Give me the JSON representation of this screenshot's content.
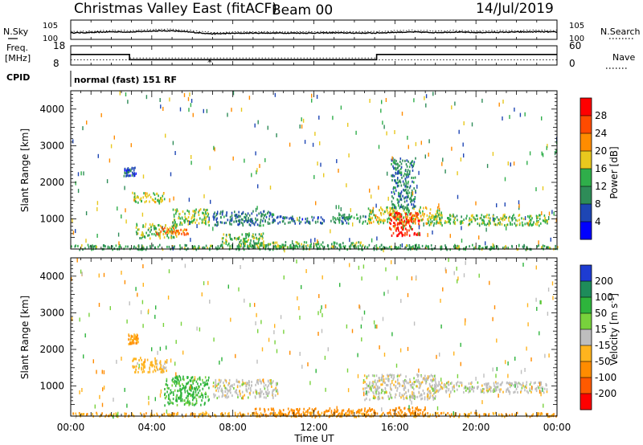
{
  "header": {
    "title": "Christmas Valley East (fitACF)",
    "beam": "Beam 00",
    "date": "14/Jul/2019",
    "mode": "normal (fast) 151 RF"
  },
  "side_labels": {
    "nsky": "N.Sky",
    "nsearch": "N.Search",
    "freq": "Freq.",
    "freq_unit": "[MHz]",
    "nave": "Nave",
    "cpid": "CPID"
  },
  "colors": {
    "scatter_background": "#ffffff",
    "ground_scatter": "#bebebe",
    "trace": "#000000"
  },
  "chart_data": [
    {
      "type": "line",
      "panel": "noise",
      "x": [
        0,
        1,
        2,
        3,
        4,
        5,
        6,
        7,
        8,
        9,
        10,
        11,
        12,
        13,
        14,
        15,
        16,
        17,
        18,
        19,
        20,
        21,
        22,
        23,
        24
      ],
      "series": [
        {
          "name": "N.Sky",
          "values": [
            1.3,
            1.4,
            1.7,
            1.6,
            2.0,
            2.1,
            1.5,
            0.9,
            1.1,
            1.2,
            1.2,
            1.2,
            1.2,
            1.3,
            1.2,
            1.2,
            1.5,
            1.6,
            1.4,
            1.6,
            1.4,
            1.5,
            1.6,
            1.7,
            1.6
          ]
        },
        {
          "name": "N.Search",
          "values": [
            1.8,
            1.9,
            2.3,
            2.2,
            2.6,
            2.7,
            2.1,
            1.4,
            1.6,
            1.7,
            1.7,
            1.7,
            1.7,
            1.8,
            1.7,
            1.8,
            2.1,
            2.3,
            2.0,
            2.2,
            2.0,
            2.1,
            2.2,
            2.3,
            2.2
          ]
        }
      ],
      "y_tick_labels": [
        "10^0",
        "10^5"
      ],
      "ylim": [
        0,
        5
      ],
      "xlim": [
        0,
        24
      ]
    },
    {
      "type": "line",
      "panel": "frequency",
      "x": [
        0,
        2.9,
        2.9,
        15.1,
        15.1,
        24
      ],
      "series": [
        {
          "name": "Freq.",
          "values": [
            13.5,
            13.5,
            10.8,
            10.8,
            13.5,
            13.5
          ]
        },
        {
          "name": "Nave",
          "values": [
            16,
            16,
            22,
            22,
            16,
            16
          ]
        }
      ],
      "ylim_freq": [
        8,
        18
      ],
      "ylim_nave": [
        0,
        60
      ],
      "y_tick_labels": [
        "8",
        "18"
      ],
      "y2_tick_labels": [
        "0",
        "60"
      ]
    },
    {
      "type": "heatmap",
      "panel": "power",
      "xlabel": "",
      "ylabel": "Slant Range [km]",
      "colorbar_label": "Power [dB]",
      "xlim": [
        0,
        24
      ],
      "ylim": [
        180,
        4500
      ],
      "y_ticks": [
        1000,
        2000,
        3000,
        4000
      ],
      "colorbar_ticks": [
        4,
        8,
        12,
        16,
        20,
        24,
        28
      ],
      "colorbar_range": [
        0,
        30
      ],
      "colorbar_colors": [
        "#0000ff",
        "#1e46b4",
        "#2e8c58",
        "#2fae4a",
        "#e8c81e",
        "#ff8c00",
        "#ff4b00",
        "#ff0000"
      ],
      "features": [
        {
          "t": [
            0.0,
            24.0
          ],
          "r": [
            190,
            320
          ],
          "value": 12
        },
        {
          "t": [
            2.6,
            3.2
          ],
          "r": [
            2200,
            2450
          ],
          "value": 6
        },
        {
          "t": [
            3.0,
            4.6
          ],
          "r": [
            1450,
            1750
          ],
          "value": 16
        },
        {
          "t": [
            3.2,
            5.2
          ],
          "r": [
            500,
            900
          ],
          "value": 14
        },
        {
          "t": [
            4.2,
            5.8
          ],
          "r": [
            600,
            800
          ],
          "value": 22
        },
        {
          "t": [
            5.0,
            6.8
          ],
          "r": [
            850,
            1300
          ],
          "value": 15
        },
        {
          "t": [
            7.0,
            10.0
          ],
          "r": [
            850,
            1250
          ],
          "value": 8
        },
        {
          "t": [
            7.4,
            9.5
          ],
          "r": [
            280,
            650
          ],
          "value": 14
        },
        {
          "t": [
            9.0,
            14.5
          ],
          "r": [
            250,
            400
          ],
          "value": 13
        },
        {
          "t": [
            10.0,
            12.5
          ],
          "r": [
            900,
            1100
          ],
          "value": 7
        },
        {
          "t": [
            12.8,
            14.6
          ],
          "r": [
            900,
            1150
          ],
          "value": 10
        },
        {
          "t": [
            14.6,
            18.3
          ],
          "r": [
            900,
            1350
          ],
          "value": 16
        },
        {
          "t": [
            15.7,
            17.2
          ],
          "r": [
            550,
            1200
          ],
          "value": 26
        },
        {
          "t": [
            17.6,
            23.5
          ],
          "r": [
            850,
            1150
          ],
          "value": 14
        },
        {
          "t": [
            15.8,
            17.0
          ],
          "r": [
            1300,
            2700
          ],
          "value": 9
        }
      ]
    },
    {
      "type": "heatmap",
      "panel": "velocity",
      "xlabel": "Time UT",
      "ylabel": "Slant Range [km]",
      "colorbar_label": "Velocity [m s^-1]",
      "xlim": [
        0,
        24
      ],
      "ylim": [
        180,
        4500
      ],
      "y_ticks": [
        1000,
        2000,
        3000,
        4000
      ],
      "x_tick_labels": [
        "00:00",
        "04:00",
        "08:00",
        "12:00",
        "16:00",
        "20:00",
        "00:00"
      ],
      "x_ticks": [
        0,
        4,
        8,
        12,
        16,
        20,
        24
      ],
      "colorbar_ticks": [
        200,
        100,
        50,
        15,
        -15,
        -50,
        -100,
        -200
      ],
      "colorbar_colors": [
        "#1e3cd2",
        "#1e8c5a",
        "#2eb43c",
        "#78d23c",
        "#bebebe",
        "#ffb41e",
        "#ff8c00",
        "#ff5a00",
        "#ff0000"
      ],
      "features": [
        {
          "t": [
            0.0,
            24.0
          ],
          "r": [
            190,
            300
          ],
          "value": -40
        },
        {
          "t": [
            2.8,
            3.3
          ],
          "r": [
            2150,
            2450
          ],
          "value": -60
        },
        {
          "t": [
            3.0,
            4.8
          ],
          "r": [
            1400,
            1800
          ],
          "value": -30
        },
        {
          "t": [
            4.6,
            6.8
          ],
          "r": [
            500,
            1300
          ],
          "value": 60
        },
        {
          "t": [
            7.0,
            10.2
          ],
          "r": [
            700,
            1200
          ],
          "value": 0
        },
        {
          "t": [
            9.0,
            15.0
          ],
          "r": [
            200,
            420
          ],
          "value": -70
        },
        {
          "t": [
            14.4,
            18.0
          ],
          "r": [
            650,
            1350
          ],
          "value": 0
        },
        {
          "t": [
            18.0,
            23.5
          ],
          "r": [
            850,
            1150
          ],
          "value": 0
        },
        {
          "t": [
            15.5,
            17.5
          ],
          "r": [
            200,
            450
          ],
          "value": -80
        }
      ]
    }
  ]
}
